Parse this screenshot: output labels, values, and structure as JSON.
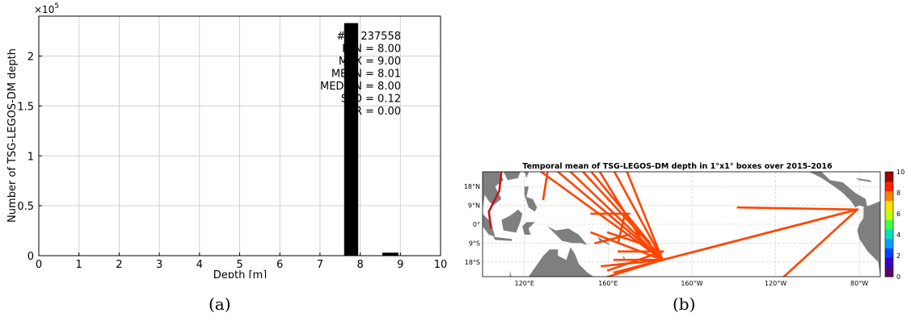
{
  "captions": {
    "a": "(a)",
    "b": "(b)"
  },
  "chart_data": [
    {
      "type": "bar",
      "title": "",
      "xlabel": "Depth [m]",
      "ylabel": "Number of TSG-LEGOS-DM depth",
      "y_multiplier_label": "×10",
      "y_multiplier_exponent": "5",
      "xlim": [
        0,
        10
      ],
      "ylim": [
        0,
        2.4
      ],
      "x_ticks": [
        0,
        1,
        2,
        3,
        4,
        5,
        6,
        7,
        8,
        9,
        10
      ],
      "y_ticks": [
        0,
        0.5,
        1,
        1.5,
        2
      ],
      "y_tick_labels": [
        "0",
        "0.5",
        "1",
        "1.5",
        "2"
      ],
      "grid": true,
      "bars": [
        {
          "x0": 7.6,
          "x1": 7.95,
          "value": 2.33
        },
        {
          "x0": 8.55,
          "x1": 8.95,
          "value": 0.03
        }
      ],
      "bar_color": "#000000",
      "stats_text": [
        "# = 237558",
        "MIN = 8.00",
        "MAX =  9.00",
        "MEAN = 8.01",
        "MEDIAN = 8.00",
        "STD = 0.12",
        "IQR = 0.00"
      ]
    },
    {
      "type": "heatmap",
      "title": "Temporal mean of TSG-LEGOS-DM depth in 1°x1° boxes over 2015-2016",
      "x_tick_labels": [
        {
          "lon": 120,
          "text": "120°E"
        },
        {
          "lon": 160,
          "text": "160°E"
        },
        {
          "lon": 200,
          "text": "160°W"
        },
        {
          "lon": 240,
          "text": "120°W"
        },
        {
          "lon": 280,
          "text": "80°W"
        }
      ],
      "y_tick_labels": [
        {
          "lat": 18,
          "text": "18°N"
        },
        {
          "lat": 9,
          "text": "9°N"
        },
        {
          "lat": 0,
          "text": "0°"
        },
        {
          "lat": -9,
          "text": "9°S"
        },
        {
          "lat": -18,
          "text": "18°S"
        }
      ],
      "lon_range": [
        100,
        290
      ],
      "lat_range": [
        -25,
        25
      ],
      "colorbar": {
        "min": 0,
        "max": 10,
        "ticks": [
          "0",
          "2",
          "4",
          "6",
          "8",
          "10"
        ],
        "colors": [
          "#5a0070",
          "#3b00c8",
          "#0040ff",
          "#00a0ff",
          "#00e0c0",
          "#40ff40",
          "#c0ff00",
          "#ffe000",
          "#ff8000",
          "#ff2000",
          "#a00000"
        ]
      },
      "track_color": "#ff4500",
      "track_color_dark": "#c81414",
      "land_color": "#7f7f7f"
    }
  ]
}
